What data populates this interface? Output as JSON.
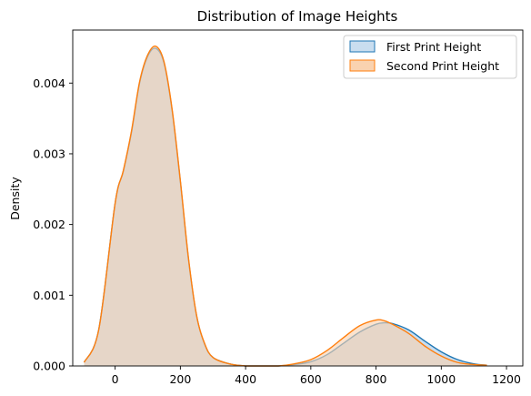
{
  "chart_data": {
    "type": "area",
    "title": "Distribution of Image Heights",
    "xlabel": "",
    "ylabel": "Density",
    "xlim": [
      -130,
      1250
    ],
    "ylim": [
      0,
      0.00475
    ],
    "xticks": [
      0,
      200,
      400,
      600,
      800,
      1000,
      1200
    ],
    "yticks": [
      0.0,
      0.001,
      0.002,
      0.003,
      0.004
    ],
    "ytick_labels": [
      "0.000",
      "0.001",
      "0.002",
      "0.003",
      "0.004"
    ],
    "grid": false,
    "legend_position": "top-right",
    "x": [
      -95,
      -50,
      0,
      25,
      50,
      75,
      100,
      125,
      150,
      175,
      200,
      225,
      250,
      275,
      300,
      350,
      400,
      450,
      500,
      550,
      600,
      650,
      700,
      750,
      800,
      825,
      850,
      900,
      950,
      1000,
      1050,
      1100,
      1140
    ],
    "series": [
      {
        "name": "First Print Height",
        "color": "#1f77b4",
        "fill": "#c9ddef",
        "values": [
          5e-05,
          0.00052,
          0.0023,
          0.00275,
          0.0033,
          0.004,
          0.00438,
          0.00449,
          0.00428,
          0.0036,
          0.0026,
          0.0015,
          0.0007,
          0.0003,
          0.00012,
          3e-05,
          0.0,
          0.0,
          0.0,
          2e-05,
          6e-05,
          0.00016,
          0.00032,
          0.00048,
          0.00059,
          0.00061,
          0.0006,
          0.00051,
          0.00035,
          0.0002,
          9e-05,
          3e-05,
          1e-05
        ]
      },
      {
        "name": "Second Print Height",
        "color": "#ff7f0e",
        "fill": "#f9d2b0",
        "values": [
          5e-05,
          0.00052,
          0.0023,
          0.00276,
          0.00332,
          0.00402,
          0.0044,
          0.00452,
          0.0043,
          0.00362,
          0.00262,
          0.00152,
          0.00071,
          0.00031,
          0.00012,
          3e-05,
          0.0,
          0.0,
          0.0,
          3e-05,
          9e-05,
          0.00022,
          0.0004,
          0.00057,
          0.00065,
          0.00064,
          0.00059,
          0.00046,
          0.00028,
          0.00014,
          5e-05,
          2e-05,
          1e-05
        ]
      }
    ]
  }
}
